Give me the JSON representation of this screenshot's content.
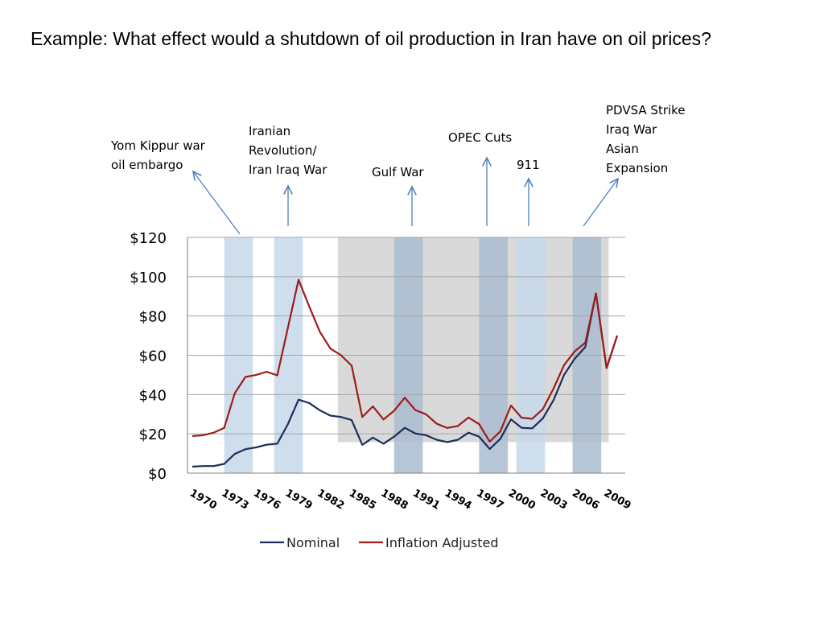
{
  "slide": {
    "title": "Example:  What effect would a shutdown of oil production in Iran have on oil prices?"
  },
  "chart_data": {
    "type": "line",
    "x": [
      1970,
      1971,
      1972,
      1973,
      1974,
      1975,
      1976,
      1977,
      1978,
      1979,
      1980,
      1981,
      1982,
      1983,
      1984,
      1985,
      1986,
      1987,
      1988,
      1989,
      1990,
      1991,
      1992,
      1993,
      1994,
      1995,
      1996,
      1997,
      1998,
      1999,
      2000,
      2001,
      2002,
      2003,
      2004,
      2005,
      2006,
      2007,
      2008,
      2009,
      2010
    ],
    "x_tick_labels": [
      "1970",
      "1973",
      "1976",
      "1979",
      "1982",
      "1985",
      "1988",
      "1991",
      "1994",
      "1997",
      "2000",
      "2003",
      "2006",
      "2009"
    ],
    "y_tick_labels": [
      "$0",
      "$20",
      "$40",
      "$60",
      "$80",
      "$100",
      "$120"
    ],
    "ylim": [
      0,
      120
    ],
    "grid": true,
    "legend_position": "bottom",
    "series": [
      {
        "name": "Nominal",
        "color": "#1f2d5a",
        "values": [
          3.3,
          3.6,
          3.6,
          4.7,
          9.8,
          12.2,
          13.1,
          14.5,
          15.0,
          25.0,
          37.4,
          35.7,
          32.0,
          29.3,
          28.6,
          27.0,
          14.4,
          18.1,
          15.0,
          18.6,
          23.1,
          20.2,
          19.3,
          17.0,
          15.8,
          17.0,
          20.6,
          18.6,
          12.3,
          17.5,
          27.4,
          23.1,
          22.8,
          27.9,
          37.1,
          50.0,
          58.3,
          64.2,
          91.5,
          53.5,
          70.0
        ]
      },
      {
        "name": "Inflation Adjusted",
        "color": "#9e1c1c",
        "values": [
          18.9,
          19.3,
          20.6,
          23.0,
          40.7,
          49.0,
          50.0,
          51.6,
          49.8,
          74.0,
          98.4,
          85.0,
          72.0,
          63.4,
          60.0,
          54.7,
          28.6,
          34.0,
          27.3,
          31.8,
          38.4,
          32.1,
          30.0,
          25.2,
          23.0,
          24.0,
          28.3,
          25.0,
          16.0,
          21.3,
          34.4,
          28.2,
          27.7,
          32.6,
          43.0,
          55.0,
          62.0,
          66.4,
          91.5,
          53.5,
          70.0
        ]
      }
    ],
    "shaded_bands": [
      {
        "from": 1973.0,
        "to": 1975.7,
        "color": "#c6d8ea"
      },
      {
        "from": 1977.7,
        "to": 1980.4,
        "color": "#c6d8ea"
      },
      {
        "from": 1989.0,
        "to": 1991.7,
        "color": "#a9bcd0"
      },
      {
        "from": 1997.0,
        "to": 1999.7,
        "color": "#a9bcd0"
      },
      {
        "from": 2000.5,
        "to": 2003.2,
        "color": "#c6d8ea"
      },
      {
        "from": 2005.8,
        "to": 2008.5,
        "color": "#a9bcd0"
      }
    ],
    "gray_region": {
      "from": 1983.7,
      "to": 2009.2,
      "y_from": 15.8,
      "y_to": 120,
      "color": "#d9d9d9"
    },
    "annotations": [
      {
        "lines": [
          "Yom Kippur war",
          "oil embargo"
        ],
        "arrow_from_year": 1975.0,
        "arrow_to": "label"
      },
      {
        "lines": [
          "Iranian",
          "Revolution/",
          "Iran Iraq War"
        ],
        "arrow_from_year": 1979.0
      },
      {
        "lines": [
          "Gulf War"
        ],
        "arrow_from_year": 1990.0
      },
      {
        "lines": [
          "OPEC Cuts"
        ],
        "arrow_from_year": 1998.0
      },
      {
        "lines": [
          "911"
        ],
        "arrow_from_year": 2002.0
      },
      {
        "lines": [
          "PDVSA Strike",
          "Iraq War",
          "Asian",
          "Expansion"
        ],
        "arrow_from_year": 2007.0
      }
    ]
  }
}
